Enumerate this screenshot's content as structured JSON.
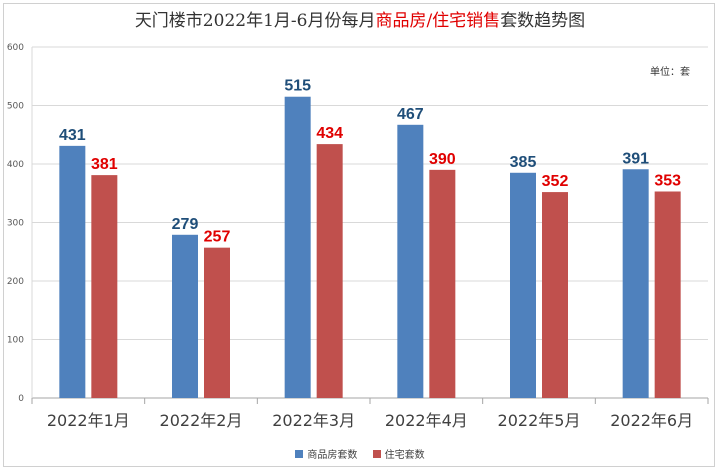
{
  "title": {
    "prefix": "天门楼市2022年1月-6月份每月",
    "highlight": "商品房/住宅销售",
    "suffix": "套数趋势图"
  },
  "unit_label": "单位：套",
  "colors": {
    "series1": "#4f81bd",
    "series2": "#c0504d",
    "label1": "#1f4e79",
    "label2": "#e00000"
  },
  "chart_data": {
    "type": "bar",
    "title": "天门楼市2022年1月-6月份每月商品房/住宅销售套数趋势图",
    "categories": [
      "2022年1月",
      "2022年2月",
      "2022年3月",
      "2022年4月",
      "2022年5月",
      "2022年6月"
    ],
    "series": [
      {
        "name": "商品房套数",
        "values": [
          431,
          279,
          515,
          467,
          385,
          391
        ]
      },
      {
        "name": "住宅套数",
        "values": [
          381,
          257,
          434,
          390,
          352,
          353
        ]
      }
    ],
    "ylim": [
      0,
      600
    ],
    "yticks": [
      0,
      100,
      200,
      300,
      400,
      500,
      600
    ],
    "grid": true,
    "legend": "bottom-center",
    "xlabel": "",
    "ylabel": ""
  }
}
